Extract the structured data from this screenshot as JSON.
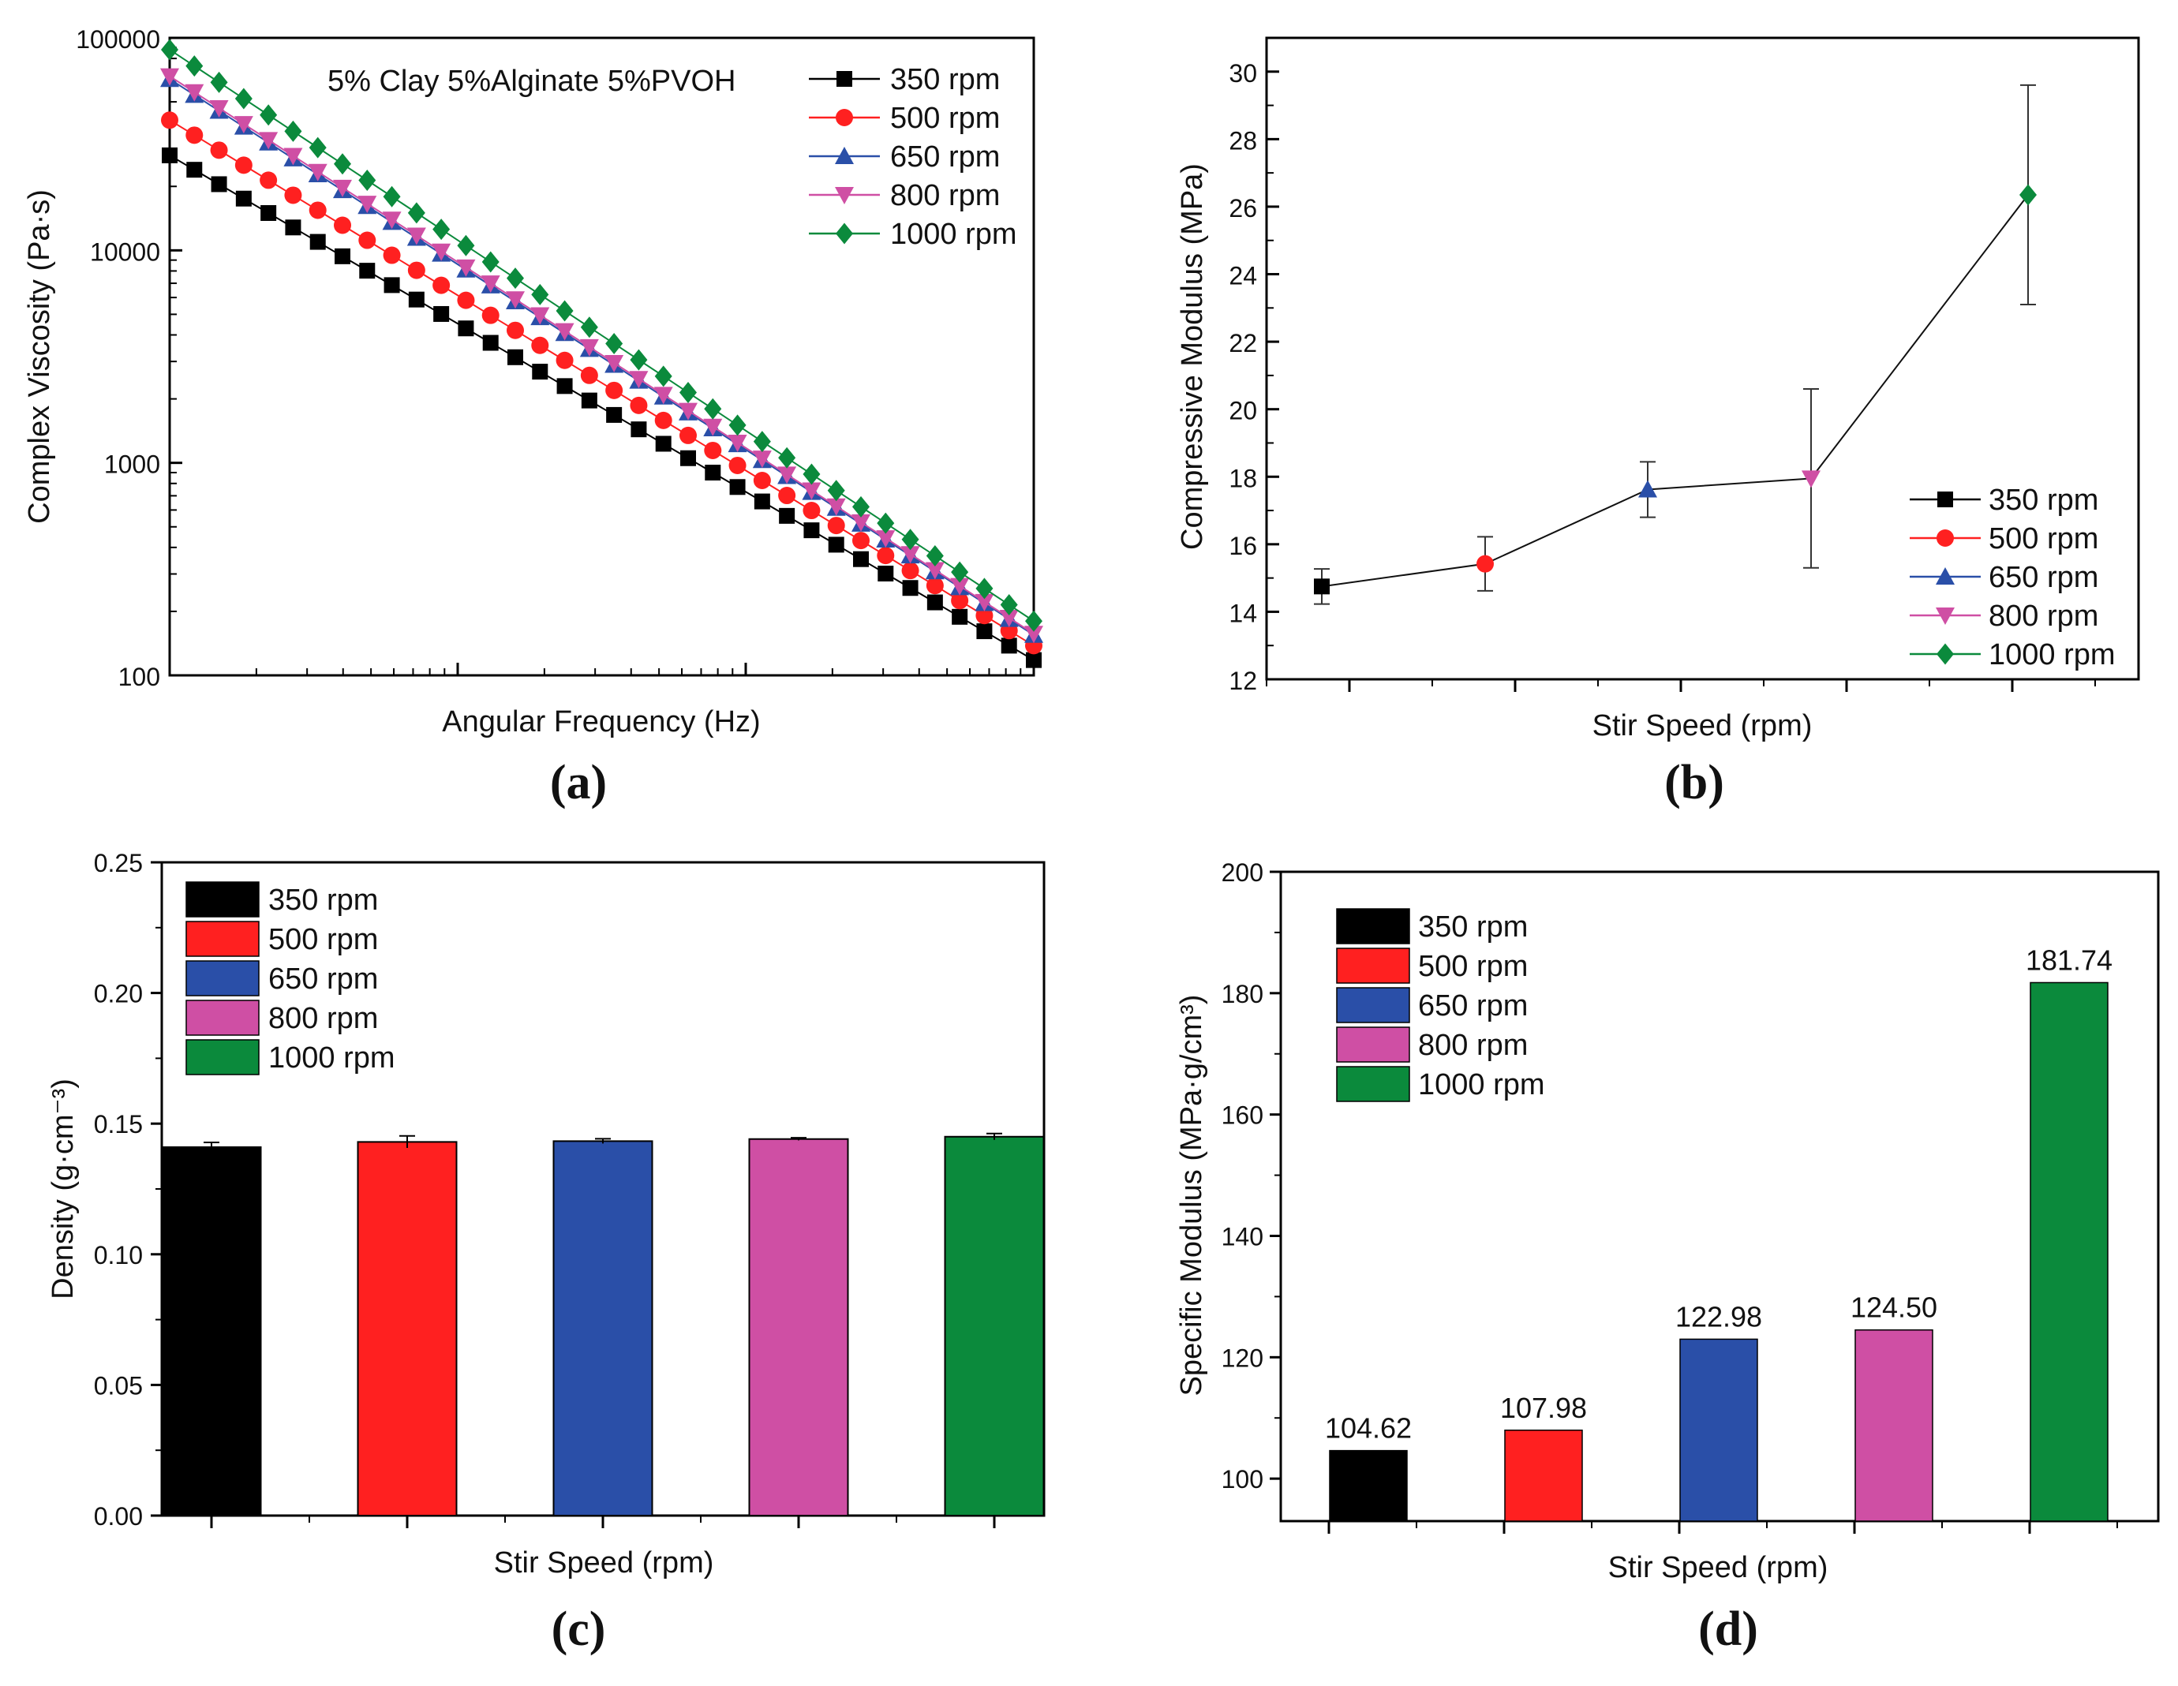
{
  "figure": {
    "panel_labels": [
      "(a)",
      "(b)",
      "(c)",
      "(d)"
    ]
  },
  "series_styles": [
    {
      "name": "350 rpm",
      "color": "#000000",
      "marker": "square"
    },
    {
      "name": "500 rpm",
      "color": "#ff2020",
      "marker": "circle"
    },
    {
      "name": "650 rpm",
      "color": "#2a4fa8",
      "marker": "triangle-up"
    },
    {
      "name": "800 rpm",
      "color": "#cf4fa4",
      "marker": "triangle-down"
    },
    {
      "name": "1000 rpm",
      "color": "#0b8a3c",
      "marker": "diamond"
    }
  ],
  "chart_data": [
    {
      "id": "a",
      "type": "scatter",
      "title": "",
      "annotation": "5% Clay 5%Alginate 5%PVOH",
      "xlabel": "Angular Frequency (Hz)",
      "ylabel": "Complex Viscosity (Pa·s)",
      "yscale": "log",
      "ylim": [
        100,
        100000
      ],
      "yticks": [
        100,
        1000,
        10000,
        100000
      ],
      "ytick_labels": [
        "100",
        "1000",
        "10000",
        "100000"
      ],
      "xlim": [
        0.1,
        100
      ],
      "xscale": "log",
      "xtick_labels": [
        "",
        "",
        "",
        ""
      ],
      "points_per_series": 36,
      "series": [
        {
          "name": "350 rpm",
          "start": 28000,
          "end": 118
        },
        {
          "name": "500 rpm",
          "start": 41000,
          "end": 138
        },
        {
          "name": "650 rpm",
          "start": 64000,
          "end": 155
        },
        {
          "name": "800 rpm",
          "start": 66000,
          "end": 157
        },
        {
          "name": "1000 rpm",
          "start": 88000,
          "end": 180
        }
      ],
      "legend": "top-right"
    },
    {
      "id": "b",
      "type": "line",
      "title": "",
      "xlabel": "Stir Speed (rpm)",
      "ylabel": "Compressive Modulus (MPa)",
      "ylim": [
        12,
        31
      ],
      "yticks": [
        12,
        14,
        16,
        18,
        20,
        22,
        24,
        26,
        28,
        30
      ],
      "ytick_labels": [
        "12",
        "14",
        "16",
        "18",
        "20",
        "22",
        "24",
        "26",
        "28",
        "30"
      ],
      "categories": [
        "350 rpm",
        "500 rpm",
        "650 rpm",
        "800 rpm",
        "1000 rpm"
      ],
      "values": [
        14.75,
        15.42,
        17.62,
        17.95,
        26.35
      ],
      "errors": [
        0.52,
        0.8,
        0.82,
        2.65,
        3.25
      ],
      "legend": "bottom-right"
    },
    {
      "id": "c",
      "type": "bar",
      "title": "",
      "xlabel": "Stir Speed (rpm)",
      "ylabel": "Density (g·cm⁻³)",
      "ylim": [
        0,
        0.25
      ],
      "yticks": [
        0,
        0.05,
        0.1,
        0.15,
        0.2,
        0.25
      ],
      "ytick_labels": [
        "0.00",
        "0.05",
        "0.10",
        "0.15",
        "0.20",
        "0.25"
      ],
      "categories": [
        "350 rpm",
        "500 rpm",
        "650 rpm",
        "800 rpm",
        "1000 rpm"
      ],
      "values": [
        0.141,
        0.143,
        0.1433,
        0.1441,
        0.145
      ],
      "errors": [
        0.0018,
        0.0023,
        0.0009,
        0.0005,
        0.0012
      ],
      "legend": "top-left"
    },
    {
      "id": "d",
      "type": "bar",
      "title": "",
      "xlabel": "Stir Speed (rpm)",
      "ylabel": "Specific Modulus (MPa·g/cm³)",
      "ylim": [
        93,
        200
      ],
      "yticks": [
        100,
        120,
        140,
        160,
        180,
        200
      ],
      "ytick_labels": [
        "100",
        "120",
        "140",
        "160",
        "180",
        "200"
      ],
      "categories": [
        "350 rpm",
        "500 rpm",
        "650 rpm",
        "800 rpm",
        "1000 rpm"
      ],
      "values": [
        104.62,
        107.98,
        122.98,
        124.5,
        181.74
      ],
      "data_labels": [
        "104.62",
        "107.98",
        "122.98",
        "124.50",
        "181.74"
      ],
      "legend": "top-left"
    }
  ]
}
